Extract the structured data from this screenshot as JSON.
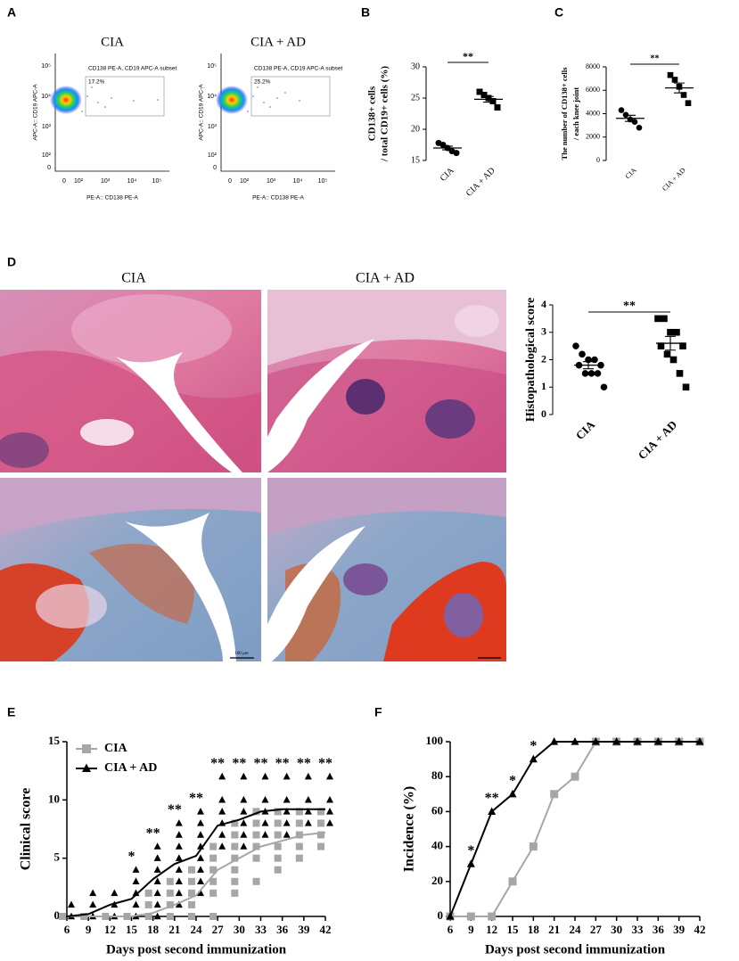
{
  "panels": [
    "A",
    "B",
    "C",
    "D",
    "E",
    "F"
  ],
  "flow": {
    "plots": [
      {
        "title": "CIA",
        "gate": "CD138 PE-A, CD19 APC-A subset",
        "percent": "17.2%"
      },
      {
        "title": "CIA + AD",
        "gate": "CD138 PE-A, CD19 APC-A subset",
        "percent": "25.2%"
      }
    ],
    "xlabel": "PE-A:: CD138 PE-A",
    "ylabel": "APC-A:: CD19 APC-A",
    "xticks": [
      "0",
      "10²",
      "10³",
      "10⁴",
      "10⁵"
    ],
    "yticks": [
      "10⁵",
      "10⁴",
      "10³",
      "10²",
      "0"
    ]
  },
  "histology": {
    "titles": [
      "CIA",
      "CIA + AD"
    ],
    "scale_bar": "100 μm"
  },
  "chart_data": [
    {
      "type": "strip",
      "ylabel": [
        "CD138+ cells",
        "/ total CD19+ cells (%)"
      ],
      "categories": [
        "CIA",
        "CIA + AD"
      ],
      "series": [
        {
          "values": [
            17.8,
            17.5,
            17.0,
            16.5,
            16.2
          ],
          "mean": 17.0,
          "sem": 0.3,
          "marker": "circle"
        },
        {
          "values": [
            26,
            25.5,
            25,
            24.5,
            23.5
          ],
          "mean": 24.8,
          "sem": 0.45,
          "marker": "square"
        }
      ],
      "color": "#000000",
      "ylim": [
        15,
        30
      ],
      "yticks": [
        15,
        20,
        25,
        30
      ],
      "significance": "**"
    },
    {
      "type": "strip",
      "ylabel": [
        "The number of CD138+ cells",
        "/ each knee joint"
      ],
      "categories": [
        "CIA",
        "CIA + AD"
      ],
      "series": [
        {
          "values": [
            4300,
            3900,
            3500,
            3300,
            2800
          ],
          "mean": 3600,
          "sem": 260,
          "marker": "circle"
        },
        {
          "values": [
            7300,
            6900,
            6300,
            5600,
            4900
          ],
          "mean": 6200,
          "sem": 420,
          "marker": "square"
        }
      ],
      "color": "#000000",
      "ylim": [
        0,
        8000
      ],
      "yticks": [
        0,
        2000,
        4000,
        6000,
        8000
      ],
      "significance": "**"
    },
    {
      "type": "strip",
      "ylabel": [
        "Histopathological score"
      ],
      "categories": [
        "CIA",
        "CIA + AD"
      ],
      "series": [
        {
          "values": [
            2.5,
            2.2,
            2.0,
            2.0,
            1.8,
            1.8,
            1.5,
            1.5,
            1.5,
            1.0
          ],
          "mean": 1.8,
          "sem": 0.13,
          "marker": "circle"
        },
        {
          "values": [
            3.5,
            3.5,
            3.0,
            3.0,
            2.5,
            2.5,
            2.2,
            2.0,
            1.5,
            1.0
          ],
          "mean": 2.6,
          "sem": 0.25,
          "marker": "square"
        }
      ],
      "color": "#000000",
      "ylim": [
        0,
        4
      ],
      "yticks": [
        0,
        1,
        2,
        3,
        4
      ],
      "significance": "**"
    },
    {
      "type": "line",
      "xlabel": "Days post second immunization",
      "ylabel": "Clinical score",
      "x": [
        6,
        9,
        12,
        15,
        18,
        21,
        24,
        27,
        30,
        33,
        36,
        39,
        42
      ],
      "series": [
        {
          "name": "CIA",
          "color": "#a6a6a6",
          "marker": "square",
          "values": [
            0,
            0,
            0,
            0,
            0.3,
            1,
            1.8,
            4,
            5,
            6,
            6.5,
            7,
            7.2
          ],
          "points": [
            [
              0
            ],
            [
              0
            ],
            [
              0
            ],
            [
              0
            ],
            [
              0,
              1,
              2
            ],
            [
              0,
              1,
              2,
              3
            ],
            [
              0,
              1,
              2,
              3,
              4
            ],
            [
              0,
              2,
              3,
              4,
              5,
              6
            ],
            [
              2,
              3,
              4,
              5,
              6,
              7,
              8
            ],
            [
              3,
              5,
              6,
              7,
              8,
              9
            ],
            [
              4,
              5,
              6,
              7,
              8,
              9
            ],
            [
              5,
              6,
              7,
              8,
              9
            ],
            [
              6,
              7,
              8,
              9
            ]
          ]
        },
        {
          "name": "CIA + AD",
          "color": "#000000",
          "marker": "triangle",
          "values": [
            0,
            0.2,
            1,
            1.5,
            3.2,
            4.5,
            5.2,
            7.8,
            8.3,
            9,
            9.2,
            9.2,
            9.2
          ],
          "points": [
            [
              0,
              1
            ],
            [
              0,
              1,
              2
            ],
            [
              0,
              1,
              2
            ],
            [
              0,
              1,
              2,
              3,
              4
            ],
            [
              0,
              1,
              2,
              3,
              4,
              5,
              6
            ],
            [
              1,
              2,
              3,
              4,
              5,
              6,
              7,
              8
            ],
            [
              2,
              3,
              4,
              5,
              6,
              7,
              8,
              9
            ],
            [
              6,
              7,
              8,
              9,
              10,
              12
            ],
            [
              6,
              7,
              8,
              9,
              10,
              12
            ],
            [
              7,
              8,
              9,
              10,
              12
            ],
            [
              7,
              8,
              9,
              10,
              12
            ],
            [
              8,
              9,
              10,
              12
            ],
            [
              8,
              9,
              10,
              12
            ]
          ]
        }
      ],
      "annotations": [
        {
          "x": 15,
          "text": "*"
        },
        {
          "x": 18,
          "text": "**"
        },
        {
          "x": 21,
          "text": "**"
        },
        {
          "x": 24,
          "text": "**"
        },
        {
          "x": 27,
          "text": "**"
        },
        {
          "x": 30,
          "text": "**"
        },
        {
          "x": 33,
          "text": "**"
        },
        {
          "x": 36,
          "text": "**"
        },
        {
          "x": 39,
          "text": "**"
        },
        {
          "x": 42,
          "text": "**"
        }
      ],
      "xlim": [
        6,
        42
      ],
      "ylim": [
        0,
        15
      ],
      "xticks": [
        6,
        9,
        12,
        15,
        18,
        21,
        24,
        27,
        30,
        33,
        36,
        39,
        42
      ],
      "yticks": [
        0,
        5,
        10,
        15
      ],
      "legend": "top-left"
    },
    {
      "type": "line",
      "xlabel": "Days post second immunization",
      "ylabel": "Incidence (%)",
      "x": [
        6,
        9,
        12,
        15,
        18,
        21,
        24,
        27,
        30,
        33,
        36,
        39,
        42
      ],
      "series": [
        {
          "name": "CIA",
          "color": "#a6a6a6",
          "marker": "square",
          "values": [
            0,
            0,
            0,
            20,
            40,
            70,
            80,
            100,
            100,
            100,
            100,
            100,
            100
          ]
        },
        {
          "name": "CIA + AD",
          "color": "#000000",
          "marker": "triangle",
          "values": [
            0,
            30,
            60,
            70,
            90,
            100,
            100,
            100,
            100,
            100,
            100,
            100,
            100
          ]
        }
      ],
      "annotations": [
        {
          "x": 9,
          "text": "*"
        },
        {
          "x": 12,
          "text": "**"
        },
        {
          "x": 15,
          "text": "*"
        },
        {
          "x": 18,
          "text": "*"
        }
      ],
      "xlim": [
        6,
        42
      ],
      "ylim": [
        0,
        100
      ],
      "xticks": [
        6,
        9,
        12,
        15,
        18,
        21,
        24,
        27,
        30,
        33,
        36,
        39,
        42
      ],
      "yticks": [
        0,
        20,
        40,
        60,
        80,
        100
      ]
    }
  ]
}
